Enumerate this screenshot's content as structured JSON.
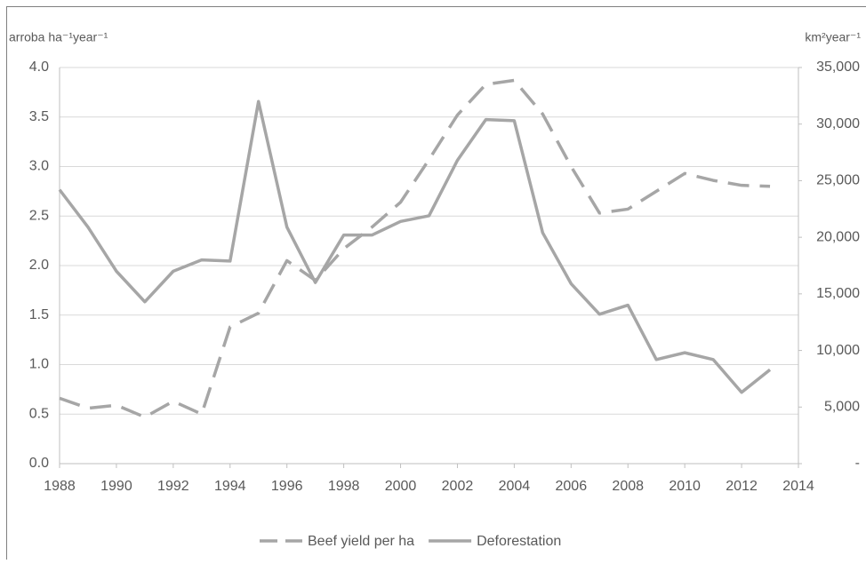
{
  "chart_data": {
    "type": "line",
    "y_label": "arroba ha⁻¹year⁻¹",
    "y2_label": "km²year⁻¹",
    "x": [
      1988,
      1989,
      1990,
      1991,
      1992,
      1993,
      1994,
      1995,
      1996,
      1997,
      1998,
      1999,
      2000,
      2001,
      2002,
      2003,
      2004,
      2005,
      2006,
      2007,
      2008,
      2009,
      2010,
      2011,
      2012,
      2013
    ],
    "series": [
      {
        "name": "Beef yield per ha",
        "color": "#a6a6a6",
        "dash": true,
        "values": [
          0.66,
          0.56,
          0.59,
          0.47,
          0.63,
          0.5,
          1.38,
          1.52,
          2.05,
          1.85,
          2.17,
          2.39,
          2.64,
          3.07,
          3.52,
          3.83,
          3.87,
          3.53,
          3.0,
          2.53,
          2.57,
          2.75,
          2.93,
          2.86,
          2.81,
          2.8
        ]
      },
      {
        "name": "Deforestation",
        "color": "#a6a6a6",
        "dash": false,
        "axis": "y2",
        "values": [
          24200,
          20900,
          17000,
          14300,
          17000,
          18000,
          17900,
          32000,
          20900,
          16000,
          20200,
          20200,
          21400,
          21900,
          26800,
          30400,
          30300,
          20400,
          15900,
          13200,
          14000,
          9200,
          9800,
          9200,
          6300,
          8300
        ]
      }
    ],
    "xlim": [
      1988,
      2014
    ],
    "xticks": [
      1988,
      1990,
      1992,
      1994,
      1996,
      1998,
      2000,
      2002,
      2004,
      2006,
      2008,
      2010,
      2012,
      2014
    ],
    "ylim": [
      0,
      4
    ],
    "yticks": [
      {
        "value": 0,
        "label": "0.0"
      },
      0.5,
      {
        "value": 1,
        "label": "1.0"
      },
      1.5,
      {
        "value": 2,
        "label": "2.0"
      },
      2.5,
      {
        "value": 3,
        "label": "3.0"
      },
      3.5,
      {
        "value": 4,
        "label": "4.0"
      }
    ],
    "y2lim": [
      0,
      35000
    ],
    "y2ticks": [
      {
        "value": 0,
        "label": "-"
      },
      {
        "value": 5000,
        "label": "5,000"
      },
      {
        "value": 10000,
        "label": "10,000"
      },
      {
        "value": 15000,
        "label": "15,000"
      },
      {
        "value": 20000,
        "label": "20,000"
      },
      {
        "value": 25000,
        "label": "25,000"
      },
      {
        "value": 30000,
        "label": "30,000"
      },
      {
        "value": 35000,
        "label": "35,000"
      }
    ],
    "grid": true,
    "legend": "bottom"
  }
}
